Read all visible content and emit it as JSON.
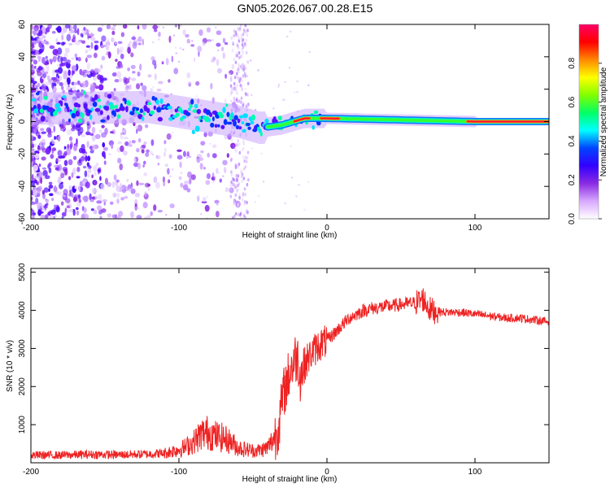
{
  "title": "GN05.2026.067.00.28.E15",
  "chart_data": [
    {
      "type": "heatmap",
      "title": "GN05.2026.067.00.28.E15",
      "xlabel": "Height of straight line (km)",
      "ylabel": "Frequency (Hz)",
      "xlim": [
        -200,
        150
      ],
      "ylim": [
        -60,
        60
      ],
      "xticks": [
        -200,
        -100,
        0,
        100
      ],
      "yticks": [
        60,
        40,
        20,
        0,
        -20,
        -40,
        -60
      ],
      "colorbar": {
        "label": "Normalized spectral amplitude",
        "range": [
          0,
          1
        ],
        "ticks": [
          "0.0",
          "0.2",
          "0.4",
          "0.6",
          "0.8"
        ],
        "colors": [
          "#ffffff",
          "#d8a8ff",
          "#8a2be2",
          "#3300ff",
          "#0044ff",
          "#00ffff",
          "#00ff66",
          "#80ff00",
          "#ffff00",
          "#ff8800",
          "#ff0000",
          "#ff0066"
        ]
      },
      "ridge": [
        {
          "x": -200,
          "y": 8
        },
        {
          "x": -120,
          "y": 9
        },
        {
          "x": -100,
          "y": 6
        },
        {
          "x": -80,
          "y": 3
        },
        {
          "x": -60,
          "y": 0
        },
        {
          "x": -45,
          "y": -4
        },
        {
          "x": -30,
          "y": -2
        },
        {
          "x": -15,
          "y": 2
        },
        {
          "x": 0,
          "y": 2
        },
        {
          "x": 50,
          "y": 1
        },
        {
          "x": 100,
          "y": 0
        },
        {
          "x": 150,
          "y": 0
        }
      ]
    },
    {
      "type": "line",
      "xlabel": "Height of straight line (km)",
      "ylabel": "SNR (10 * v/v)",
      "xlim": [
        -200,
        150
      ],
      "ylim": [
        0,
        5100
      ],
      "xticks": [
        -200,
        -100,
        0,
        100
      ],
      "yticks": [
        1000,
        2000,
        3000,
        4000,
        5000
      ],
      "color": "#ee2222",
      "series": [
        {
          "name": "SNR",
          "x": [
            -200,
            -180,
            -160,
            -140,
            -120,
            -110,
            -100,
            -95,
            -90,
            -85,
            -80,
            -75,
            -70,
            -65,
            -60,
            -55,
            -50,
            -45,
            -40,
            -35,
            -32,
            -30,
            -28,
            -25,
            -22,
            -20,
            -18,
            -15,
            -10,
            -5,
            0,
            5,
            10,
            15,
            20,
            25,
            30,
            40,
            50,
            60,
            65,
            70,
            80,
            90,
            100,
            110,
            120,
            130,
            140,
            150
          ],
          "y": [
            200,
            200,
            220,
            210,
            230,
            250,
            350,
            420,
            550,
            750,
            800,
            700,
            650,
            550,
            400,
            350,
            320,
            330,
            400,
            700,
            1100,
            1700,
            2000,
            2400,
            2700,
            2800,
            2300,
            2600,
            2900,
            3100,
            3200,
            3400,
            3600,
            3800,
            3900,
            4000,
            4050,
            4100,
            4150,
            4200,
            4300,
            4000,
            3950,
            3950,
            3900,
            3850,
            3800,
            3800,
            3750,
            3700
          ]
        }
      ]
    }
  ]
}
